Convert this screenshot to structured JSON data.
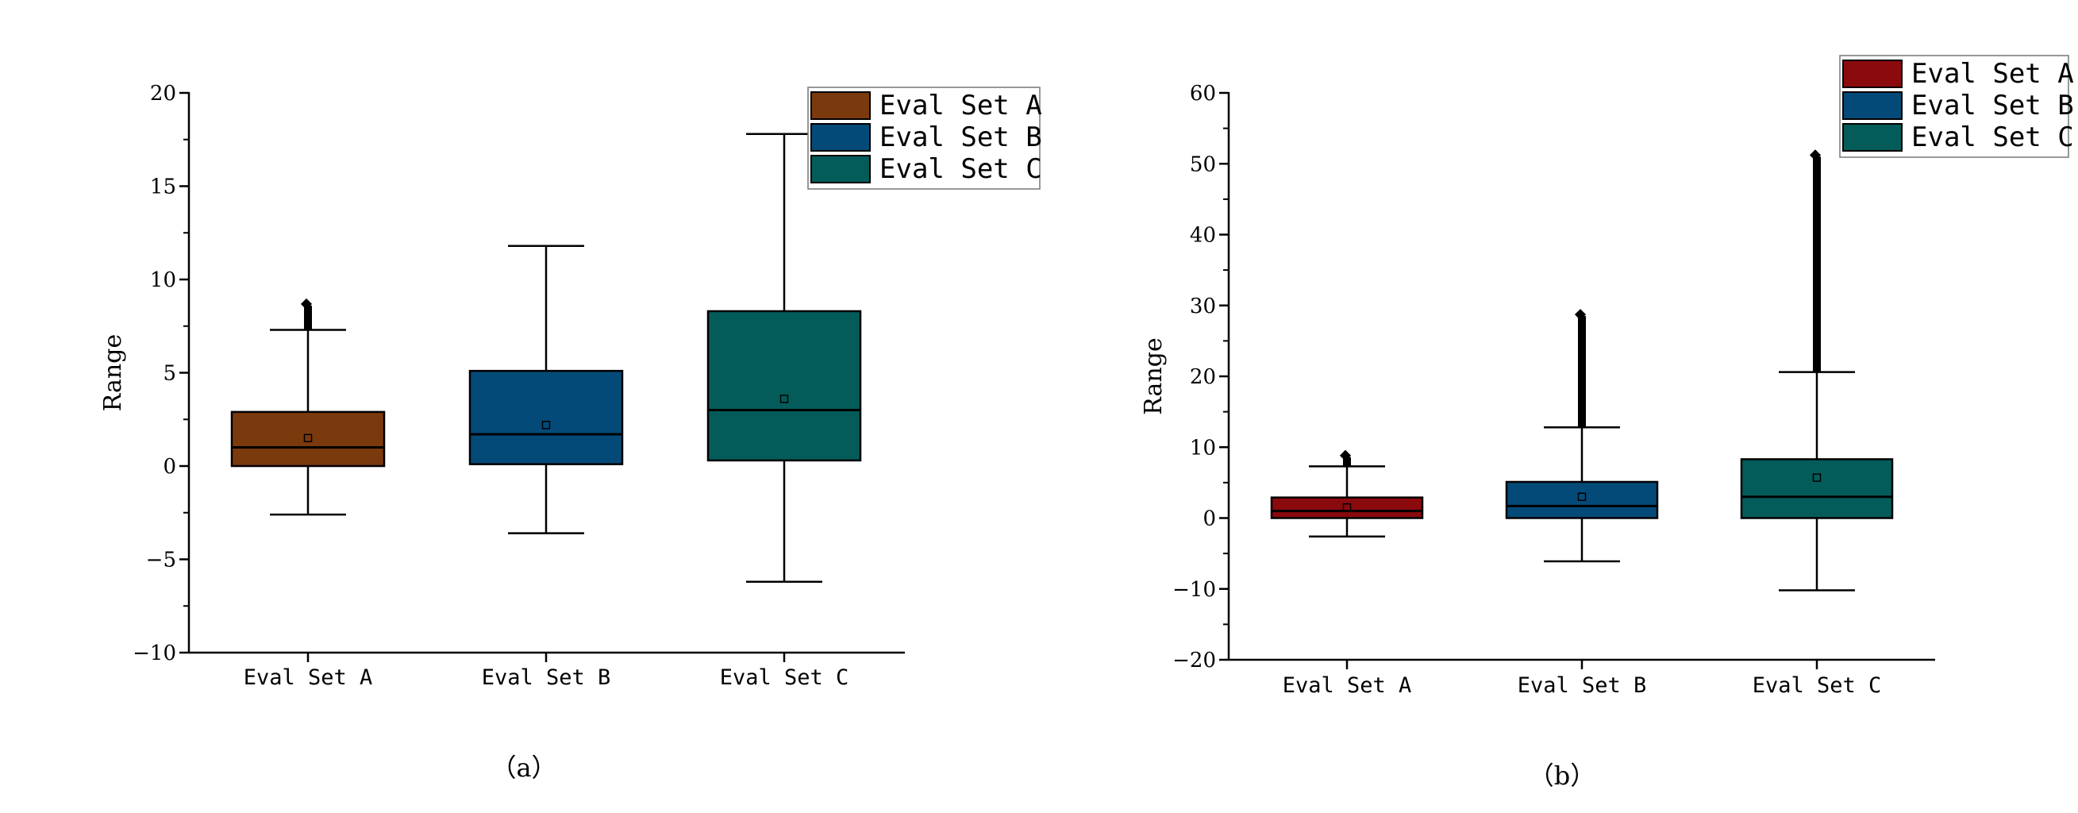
{
  "chart_data": [
    {
      "panel": "（a）",
      "type": "box",
      "ylabel": "Range",
      "ylim": [
        -10,
        20
      ],
      "yticks": [
        -10,
        -5,
        0,
        5,
        10,
        15,
        20
      ],
      "categories": [
        "Eval Set A",
        "Eval Set B",
        "Eval Set C"
      ],
      "legend": {
        "placement": "top-right",
        "entries": [
          "Eval Set A",
          "Eval Set B",
          "Eval Set C"
        ]
      },
      "series": [
        {
          "name": "Eval Set A",
          "color": "#7B3A0D",
          "whisker_low": -2.6,
          "q1": 0.0,
          "median": 1.0,
          "q3": 2.9,
          "whisker_high": 7.3,
          "mean": 1.5,
          "outliers_from": 7.3,
          "outliers_to": 8.6
        },
        {
          "name": "Eval Set B",
          "color": "#044A78",
          "whisker_low": -3.6,
          "q1": 0.1,
          "median": 1.7,
          "q3": 5.1,
          "whisker_high": 11.8,
          "mean": 2.2,
          "outliers_from": null,
          "outliers_to": null
        },
        {
          "name": "Eval Set C",
          "color": "#035C5A",
          "whisker_low": -6.2,
          "q1": 0.3,
          "median": 3.0,
          "q3": 8.3,
          "whisker_high": 17.8,
          "mean": 3.6,
          "outliers_from": null,
          "outliers_to": null
        }
      ]
    },
    {
      "panel": "（b）",
      "type": "box",
      "ylabel": "Range",
      "ylim": [
        -20,
        60
      ],
      "yticks": [
        -20,
        -10,
        0,
        10,
        20,
        30,
        40,
        50,
        60
      ],
      "categories": [
        "Eval Set A",
        "Eval Set B",
        "Eval Set C"
      ],
      "legend": {
        "placement": "top-right",
        "entries": [
          "Eval Set A",
          "Eval Set B",
          "Eval Set C"
        ]
      },
      "series": [
        {
          "name": "Eval Set A",
          "color": "#8A0A0E",
          "whisker_low": -2.6,
          "q1": 0.0,
          "median": 1.0,
          "q3": 2.9,
          "whisker_high": 7.3,
          "mean": 1.5,
          "outliers_from": 7.3,
          "outliers_to": 8.6
        },
        {
          "name": "Eval Set B",
          "color": "#044A78",
          "whisker_low": -6.1,
          "q1": 0.0,
          "median": 1.7,
          "q3": 5.1,
          "whisker_high": 12.8,
          "mean": 3.0,
          "outliers_from": 12.8,
          "outliers_to": 28.5
        },
        {
          "name": "Eval Set C",
          "color": "#035C5A",
          "whisker_low": -10.2,
          "q1": 0.0,
          "median": 3.0,
          "q3": 8.3,
          "whisker_high": 20.6,
          "mean": 5.7,
          "outliers_from": 20.6,
          "outliers_to": 51.0
        }
      ]
    }
  ]
}
